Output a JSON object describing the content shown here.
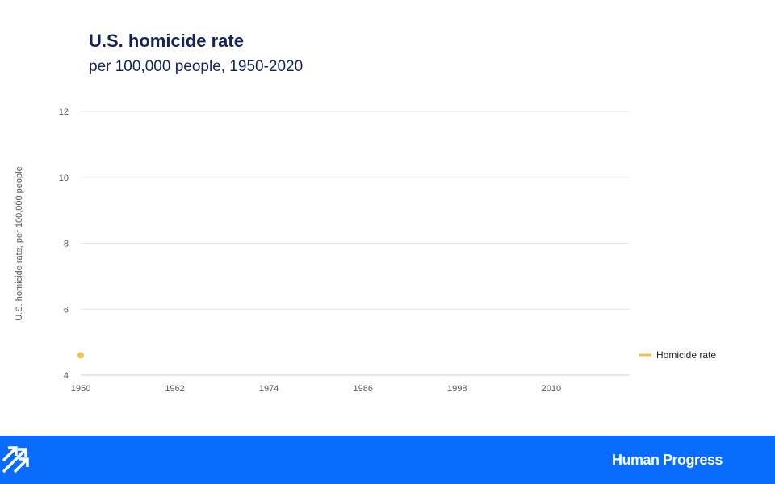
{
  "chart_data": {
    "type": "line",
    "title": "U.S. homicide rate",
    "subtitle": "per 100,000 people, 1950-2020",
    "xlabel": "",
    "ylabel": "U.S. homicide rate, per 100,000 people",
    "xlim": [
      1950,
      2020
    ],
    "ylim": [
      4,
      12
    ],
    "x_ticks": [
      "1950",
      "1962",
      "1974",
      "1986",
      "1998",
      "2010"
    ],
    "y_ticks": [
      "4",
      "6",
      "8",
      "10",
      "12"
    ],
    "grid": true,
    "legend_position": "right",
    "series": [
      {
        "name": "Homicide rate",
        "color": "#f0c445",
        "points": [
          {
            "x": 1950,
            "y": 4.6
          }
        ]
      }
    ]
  },
  "footer": {
    "brand": "Human Progress",
    "color": "#0a6cff"
  }
}
